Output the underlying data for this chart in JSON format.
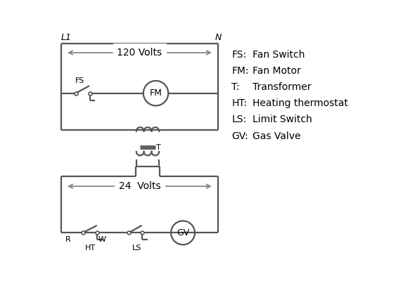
{
  "bg_color": "#ffffff",
  "line_color": "#555555",
  "text_color": "#000000",
  "legend_items": [
    [
      "FS:",
      "Fan Switch"
    ],
    [
      "FM:",
      "Fan Motor"
    ],
    [
      "T:",
      "Transformer"
    ],
    [
      "HT:",
      "Heating thermostat"
    ],
    [
      "LS:",
      "Limit Switch"
    ],
    [
      "GV:",
      "Gas Valve"
    ]
  ],
  "L1_label": "L1",
  "N_label": "N",
  "volts120_label": "120 Volts",
  "volts24_label": "24  Volts",
  "T_label": "T",
  "R_label": "R",
  "W_label": "W",
  "HT_label": "HT",
  "LS_label": "LS",
  "FS_label": "FS",
  "FM_label": "FM",
  "GV_label": "GV",
  "arrow_color": "#888888"
}
